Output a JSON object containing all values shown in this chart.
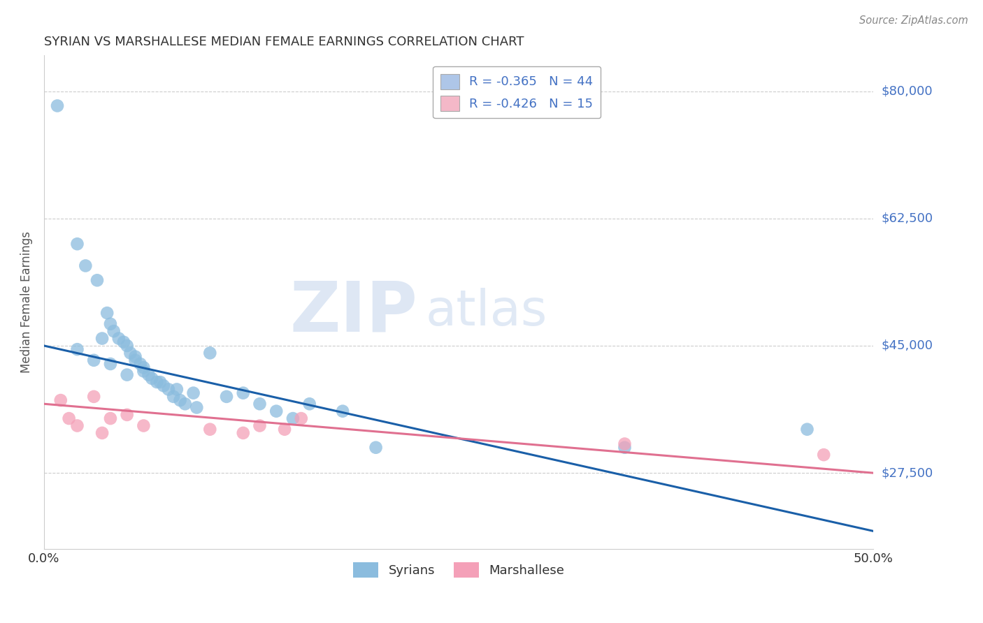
{
  "title": "SYRIAN VS MARSHALLESE MEDIAN FEMALE EARNINGS CORRELATION CHART",
  "source": "Source: ZipAtlas.com",
  "ylabel": "Median Female Earnings",
  "xlim": [
    0.0,
    0.5
  ],
  "ylim": [
    17000,
    85000
  ],
  "yticks": [
    27500,
    45000,
    62500,
    80000
  ],
  "ytick_labels": [
    "$27,500",
    "$45,000",
    "$62,500",
    "$80,000"
  ],
  "xticks": [
    0.0,
    0.1,
    0.2,
    0.3,
    0.4,
    0.5
  ],
  "xtick_labels": [
    "0.0%",
    "",
    "",
    "",
    "",
    "50.0%"
  ],
  "legend_entries": [
    {
      "label_r": "R = -0.365",
      "label_n": "N = 44",
      "color": "#aec6e8"
    },
    {
      "label_r": "R = -0.426",
      "label_n": "N = 15",
      "color": "#f4b8c8"
    }
  ],
  "syrians_x": [
    0.008,
    0.02,
    0.025,
    0.032,
    0.038,
    0.04,
    0.042,
    0.045,
    0.048,
    0.05,
    0.052,
    0.055,
    0.058,
    0.06,
    0.063,
    0.065,
    0.068,
    0.072,
    0.075,
    0.078,
    0.082,
    0.085,
    0.092,
    0.1,
    0.11,
    0.13,
    0.14,
    0.16,
    0.18,
    0.02,
    0.03,
    0.04,
    0.05,
    0.06,
    0.07,
    0.08,
    0.09,
    0.12,
    0.15,
    0.2,
    0.35,
    0.46,
    0.035,
    0.055
  ],
  "syrians_y": [
    78000,
    59000,
    56000,
    54000,
    49500,
    48000,
    47000,
    46000,
    45500,
    45000,
    44000,
    43500,
    42500,
    42000,
    41000,
    40500,
    40000,
    39500,
    39000,
    38000,
    37500,
    37000,
    36500,
    44000,
    38000,
    37000,
    36000,
    37000,
    36000,
    44500,
    43000,
    42500,
    41000,
    41500,
    40000,
    39000,
    38500,
    38500,
    35000,
    31000,
    31000,
    33500,
    46000,
    43000
  ],
  "marshallese_x": [
    0.01,
    0.015,
    0.02,
    0.03,
    0.035,
    0.04,
    0.05,
    0.06,
    0.1,
    0.12,
    0.13,
    0.145,
    0.155,
    0.35,
    0.47
  ],
  "marshallese_y": [
    37500,
    35000,
    34000,
    38000,
    33000,
    35000,
    35500,
    34000,
    33500,
    33000,
    34000,
    33500,
    35000,
    31500,
    30000
  ],
  "blue_line_x": [
    0.0,
    0.5
  ],
  "blue_line_y": [
    45000,
    19500
  ],
  "pink_line_x": [
    0.0,
    0.5
  ],
  "pink_line_y": [
    37000,
    27500
  ],
  "scatter_blue": "#8bbcde",
  "scatter_pink": "#f4a0b8",
  "line_blue": "#1a5fa8",
  "line_pink": "#e07090",
  "watermark_zip": "ZIP",
  "watermark_atlas": "atlas",
  "background_color": "#ffffff",
  "grid_color": "#cccccc",
  "label_color": "#4472c4",
  "title_color": "#333333"
}
